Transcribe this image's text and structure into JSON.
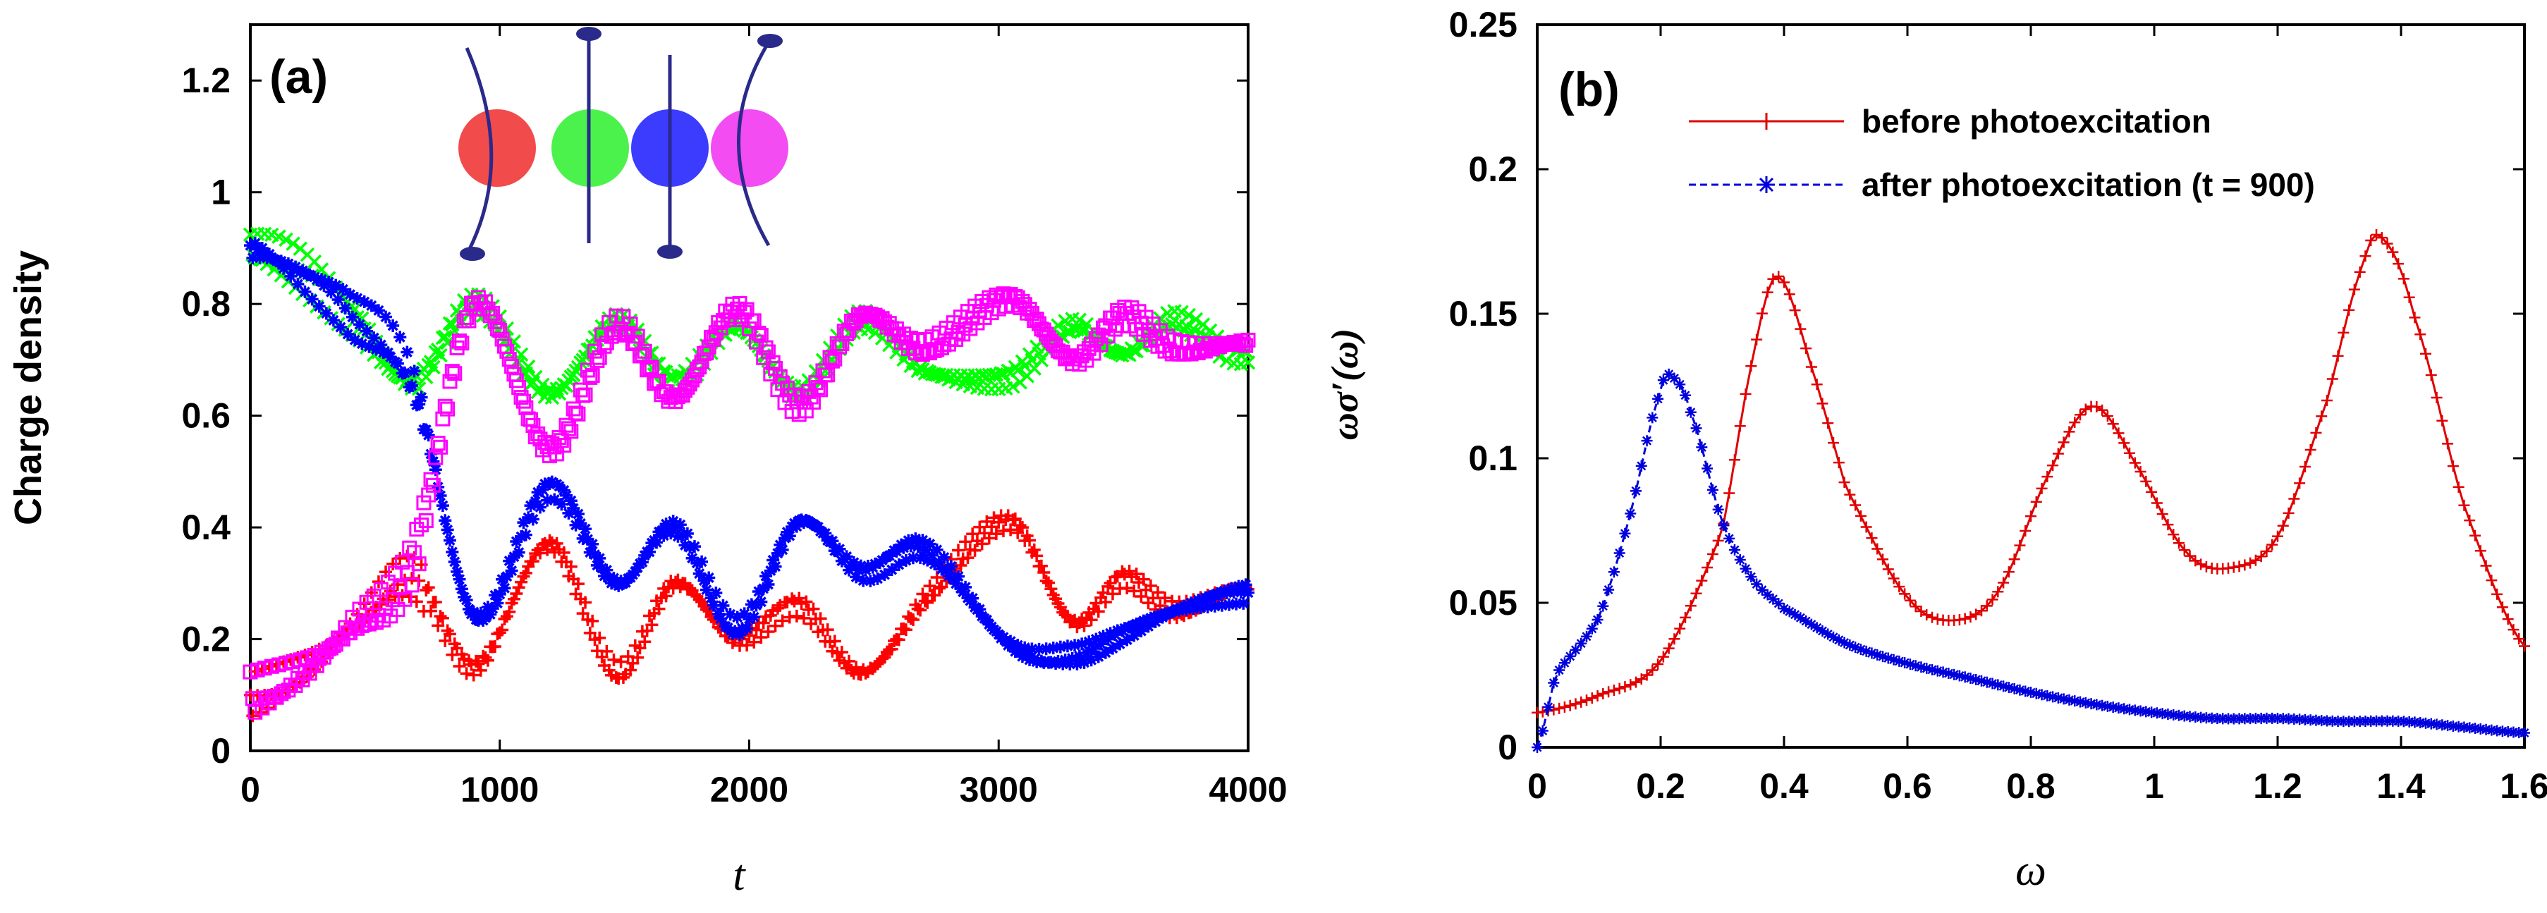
{
  "colors": {
    "red": "#ff0000",
    "green": "#00ff00",
    "blue": "#0000ff",
    "magenta": "#ff00ff",
    "curve_red": "#e00000",
    "curve_blue": "#0000dd",
    "rod": "#2a2a8a",
    "ball_red": "#f24b4b",
    "ball_green": "#4cf24c",
    "ball_blue": "#3c3cff",
    "ball_magenta": "#f24cf2"
  },
  "chart_data": [
    {
      "type": "scatter",
      "panel_label": "(a)",
      "xlabel": "t",
      "ylabel": "Charge density",
      "xlim": [
        0,
        4000
      ],
      "ylim": [
        0,
        1.3
      ],
      "xticks": [
        "0",
        "1000",
        "2000",
        "3000",
        "4000"
      ],
      "yticks": [
        "0",
        "0.2",
        "0.4",
        "0.6",
        "0.8",
        "1",
        "1.2"
      ],
      "inset": "four colored sites (red, green, blue, magenta) with bent and straight rods",
      "series": [
        {
          "name": "site 1 (red)",
          "color": "#ff0000",
          "x": [
            0,
            200,
            400,
            650,
            900,
            1200,
            1470,
            1700,
            1950,
            2200,
            2450,
            2700,
            3050,
            3300,
            3500,
            3700,
            3950
          ],
          "y": [
            0.1,
            0.14,
            0.22,
            0.31,
            0.15,
            0.37,
            0.14,
            0.3,
            0.2,
            0.26,
            0.14,
            0.27,
            0.41,
            0.23,
            0.31,
            0.25,
            0.29
          ]
        },
        {
          "name": "site 2 (green)",
          "color": "#00ff00",
          "x": [
            0,
            200,
            400,
            650,
            900,
            1200,
            1470,
            1700,
            1950,
            2200,
            2450,
            2700,
            3050,
            3300,
            3500,
            3700,
            3950
          ],
          "y": [
            0.9,
            0.86,
            0.78,
            0.66,
            0.8,
            0.64,
            0.77,
            0.66,
            0.76,
            0.64,
            0.77,
            0.68,
            0.67,
            0.76,
            0.71,
            0.77,
            0.71
          ]
        },
        {
          "name": "site 3 (blue)",
          "color": "#0000ff",
          "x": [
            0,
            200,
            400,
            650,
            900,
            1200,
            1470,
            1700,
            1950,
            2200,
            2450,
            2700,
            3050,
            3300,
            3500,
            3700,
            3950
          ],
          "y": [
            0.9,
            0.85,
            0.78,
            0.66,
            0.24,
            0.47,
            0.3,
            0.4,
            0.22,
            0.41,
            0.32,
            0.36,
            0.19,
            0.17,
            0.21,
            0.25,
            0.28
          ]
        },
        {
          "name": "site 4 (magenta)",
          "color": "#ff00ff",
          "x": [
            0,
            200,
            400,
            650,
            900,
            1200,
            1470,
            1700,
            1950,
            2200,
            2450,
            2700,
            3050,
            3300,
            3500,
            3700,
            3950
          ],
          "y": [
            0.1,
            0.14,
            0.22,
            0.34,
            0.8,
            0.54,
            0.76,
            0.63,
            0.79,
            0.62,
            0.78,
            0.72,
            0.81,
            0.7,
            0.78,
            0.72,
            0.73
          ]
        }
      ]
    },
    {
      "type": "line",
      "panel_label": "(b)",
      "xlabel": "ω",
      "ylabel": "ωσ′(ω)",
      "xlim": [
        0,
        1.6
      ],
      "ylim": [
        0,
        0.25
      ],
      "xticks": [
        "0",
        "0.2",
        "0.4",
        "0.6",
        "0.8",
        "1",
        "1.2",
        "1.4",
        "1.6"
      ],
      "yticks": [
        "0",
        "0.05",
        "0.1",
        "0.15",
        "0.2",
        "0.25"
      ],
      "legend_position": "top-right",
      "series": [
        {
          "name": "before photoexcitation",
          "color": "#e00000",
          "marker": "+",
          "x": [
            0,
            0.1,
            0.2,
            0.3,
            0.35,
            0.39,
            0.45,
            0.5,
            0.6,
            0.68,
            0.75,
            0.83,
            0.9,
            0.97,
            1.05,
            1.12,
            1.2,
            1.28,
            1.34,
            1.37,
            1.42,
            1.5,
            1.6
          ],
          "y": [
            0.012,
            0.018,
            0.03,
            0.075,
            0.135,
            0.163,
            0.128,
            0.09,
            0.052,
            0.044,
            0.055,
            0.095,
            0.118,
            0.098,
            0.068,
            0.062,
            0.073,
            0.12,
            0.168,
            0.176,
            0.15,
            0.085,
            0.035
          ]
        },
        {
          "name": "after photoexcitation (t = 900)",
          "color": "#0000dd",
          "marker": "*",
          "x": [
            0,
            0.03,
            0.1,
            0.15,
            0.2,
            0.22,
            0.25,
            0.3,
            0.35,
            0.4,
            0.5,
            0.6,
            0.7,
            0.8,
            0.9,
            1.0,
            1.1,
            1.2,
            1.3,
            1.4,
            1.5,
            1.6
          ],
          "y": [
            0.0,
            0.025,
            0.045,
            0.08,
            0.123,
            0.128,
            0.115,
            0.078,
            0.058,
            0.048,
            0.036,
            0.029,
            0.024,
            0.019,
            0.015,
            0.012,
            0.01,
            0.01,
            0.009,
            0.009,
            0.007,
            0.005
          ]
        }
      ]
    }
  ]
}
